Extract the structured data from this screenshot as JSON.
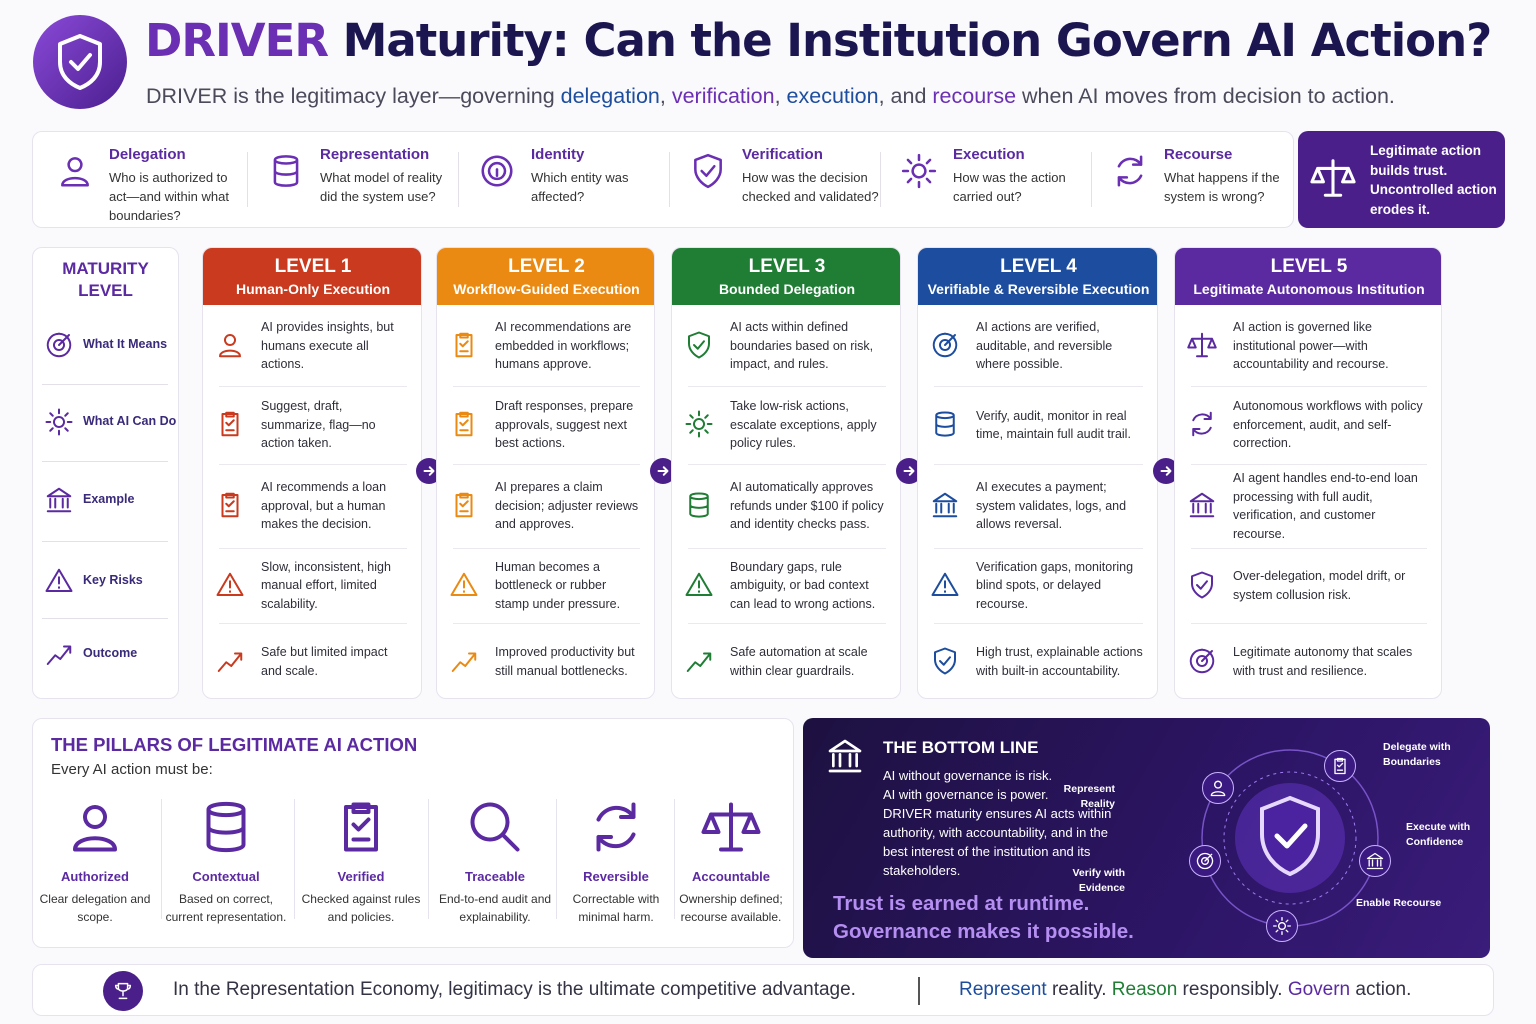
{
  "header": {
    "title": [
      {
        "text": "DRIVER",
        "color": "#6a2fb3"
      },
      {
        "text": " Maturity: Can the Institution Govern AI Action?",
        "color": "#1c1650"
      }
    ],
    "subtitle": [
      {
        "text": "DRIVER is the legitimacy layer—governing ",
        "color": "#4a4a5a"
      },
      {
        "text": "delegation",
        "color": "#1d4d9e"
      },
      {
        "text": ", ",
        "color": "#4a4a5a"
      },
      {
        "text": "verification",
        "color": "#6a2fb3"
      },
      {
        "text": ", ",
        "color": "#4a4a5a"
      },
      {
        "text": "execution",
        "color": "#1d4d9e"
      },
      {
        "text": ", and ",
        "color": "#4a4a5a"
      },
      {
        "text": "recourse",
        "color": "#6a2fb3"
      },
      {
        "text": " when AI moves from decision to action.",
        "color": "#4a4a5a"
      }
    ]
  },
  "driver_strip": {
    "items": [
      {
        "title": "Delegation",
        "desc": "Who is authorized to act—and within what boundaries?"
      },
      {
        "title": "Representation",
        "desc": "What model of reality did the system use?"
      },
      {
        "title": "Identity",
        "desc": "Which entity was affected?"
      },
      {
        "title": "Verification",
        "desc": "How was the decision checked and validated?"
      },
      {
        "title": "Execution",
        "desc": "How was the action carried out?"
      },
      {
        "title": "Recourse",
        "desc": "What happens if the system is wrong?"
      }
    ],
    "callout": "Legitimate action builds trust. Uncontrolled action erodes it."
  },
  "maturity": {
    "label": "MATURITY LEVEL",
    "rows": [
      "What It Means",
      "What AI Can Do",
      "Example",
      "Key Risks",
      "Outcome"
    ],
    "levels": [
      {
        "level": "LEVEL 1",
        "name": "Human-Only Execution",
        "color": "#c93a1e",
        "cells": [
          "AI provides insights, but humans execute all actions.",
          "Suggest, draft, summarize, flag—no action taken.",
          "AI recommends a loan approval, but a human makes the decision.",
          "Slow, inconsistent, high manual effort, limited scalability.",
          "Safe but limited impact and scale."
        ]
      },
      {
        "level": "LEVEL 2",
        "name": "Workflow-Guided Execution",
        "color": "#ea8a12",
        "cells": [
          "AI recommendations are embedded in workflows; humans approve.",
          "Draft responses, prepare approvals, suggest next best actions.",
          "AI prepares a claim decision; adjuster reviews and approves.",
          "Human becomes a bottleneck or rubber stamp under pressure.",
          "Improved productivity but still manual bottlenecks."
        ]
      },
      {
        "level": "LEVEL 3",
        "name": "Bounded Delegation",
        "color": "#1f7d34",
        "cells": [
          "AI acts within defined boundaries based on risk, impact, and rules.",
          "Take low-risk actions, escalate exceptions, apply policy rules.",
          "AI automatically approves refunds under $100 if policy and identity checks pass.",
          "Boundary gaps, rule ambiguity, or bad context can lead to wrong actions.",
          "Safe automation at scale within clear guardrails."
        ]
      },
      {
        "level": "LEVEL 4",
        "name": "Verifiable & Reversible Execution",
        "color": "#1d4d9e",
        "cells": [
          "AI actions are verified, auditable, and reversible where possible.",
          "Verify, audit, monitor in real time, maintain full audit trail.",
          "AI executes a payment; system validates, logs, and allows reversal.",
          "Verification gaps, monitoring blind spots, or delayed recourse.",
          "High trust, explainable actions with built-in accountability."
        ]
      },
      {
        "level": "LEVEL 5",
        "name": "Legitimate Autonomous Institution",
        "color": "#5b2aa1",
        "cells": [
          "AI action is governed like institutional power—with accountability and recourse.",
          "Autonomous workflows with policy enforcement, audit, and self-correction.",
          "AI agent handles end-to-end loan processing with full audit, verification, and customer recourse.",
          "Over-delegation, model drift, or system collusion risk.",
          "Legitimate autonomy that scales with trust and resilience."
        ]
      }
    ]
  },
  "pillars": {
    "heading": "THE PILLARS OF LEGITIMATE AI ACTION",
    "intro": "Every AI action must be:",
    "items": [
      {
        "title": "Authorized",
        "desc": "Clear delegation and scope."
      },
      {
        "title": "Contextual",
        "desc": "Based on correct, current representation."
      },
      {
        "title": "Verified",
        "desc": "Checked against rules and policies."
      },
      {
        "title": "Traceable",
        "desc": "End-to-end audit and explainability."
      },
      {
        "title": "Reversible",
        "desc": "Correctable with minimal harm."
      },
      {
        "title": "Accountable",
        "desc": "Ownership defined; recourse available."
      }
    ]
  },
  "bottom_line": {
    "title": "THE BOTTOM LINE",
    "body": [
      "AI without governance is risk.",
      "AI with governance is power.",
      "DRIVER maturity ensures AI acts within authority, with accountability, and in the best interest of the institution and its stakeholders."
    ],
    "tagline": [
      "Trust is earned at runtime.",
      "Governance makes it possible."
    ],
    "nodes": [
      "Delegate with Boundaries",
      "Execute with Confidence",
      "Enable Recourse",
      "Verify with Evidence",
      "Represent Reality"
    ]
  },
  "footer": {
    "statement": "In the Representation Economy, legitimacy is the ultimate competitive advantage.",
    "motto": [
      {
        "text": "Represent",
        "color": "#1d4d9e"
      },
      {
        "text": " reality. ",
        "color": "#333344"
      },
      {
        "text": "Reason",
        "color": "#1f7d34"
      },
      {
        "text": " responsibly. ",
        "color": "#333344"
      },
      {
        "text": "Govern",
        "color": "#5b2aa1"
      },
      {
        "text": " action.",
        "color": "#333344"
      }
    ]
  }
}
